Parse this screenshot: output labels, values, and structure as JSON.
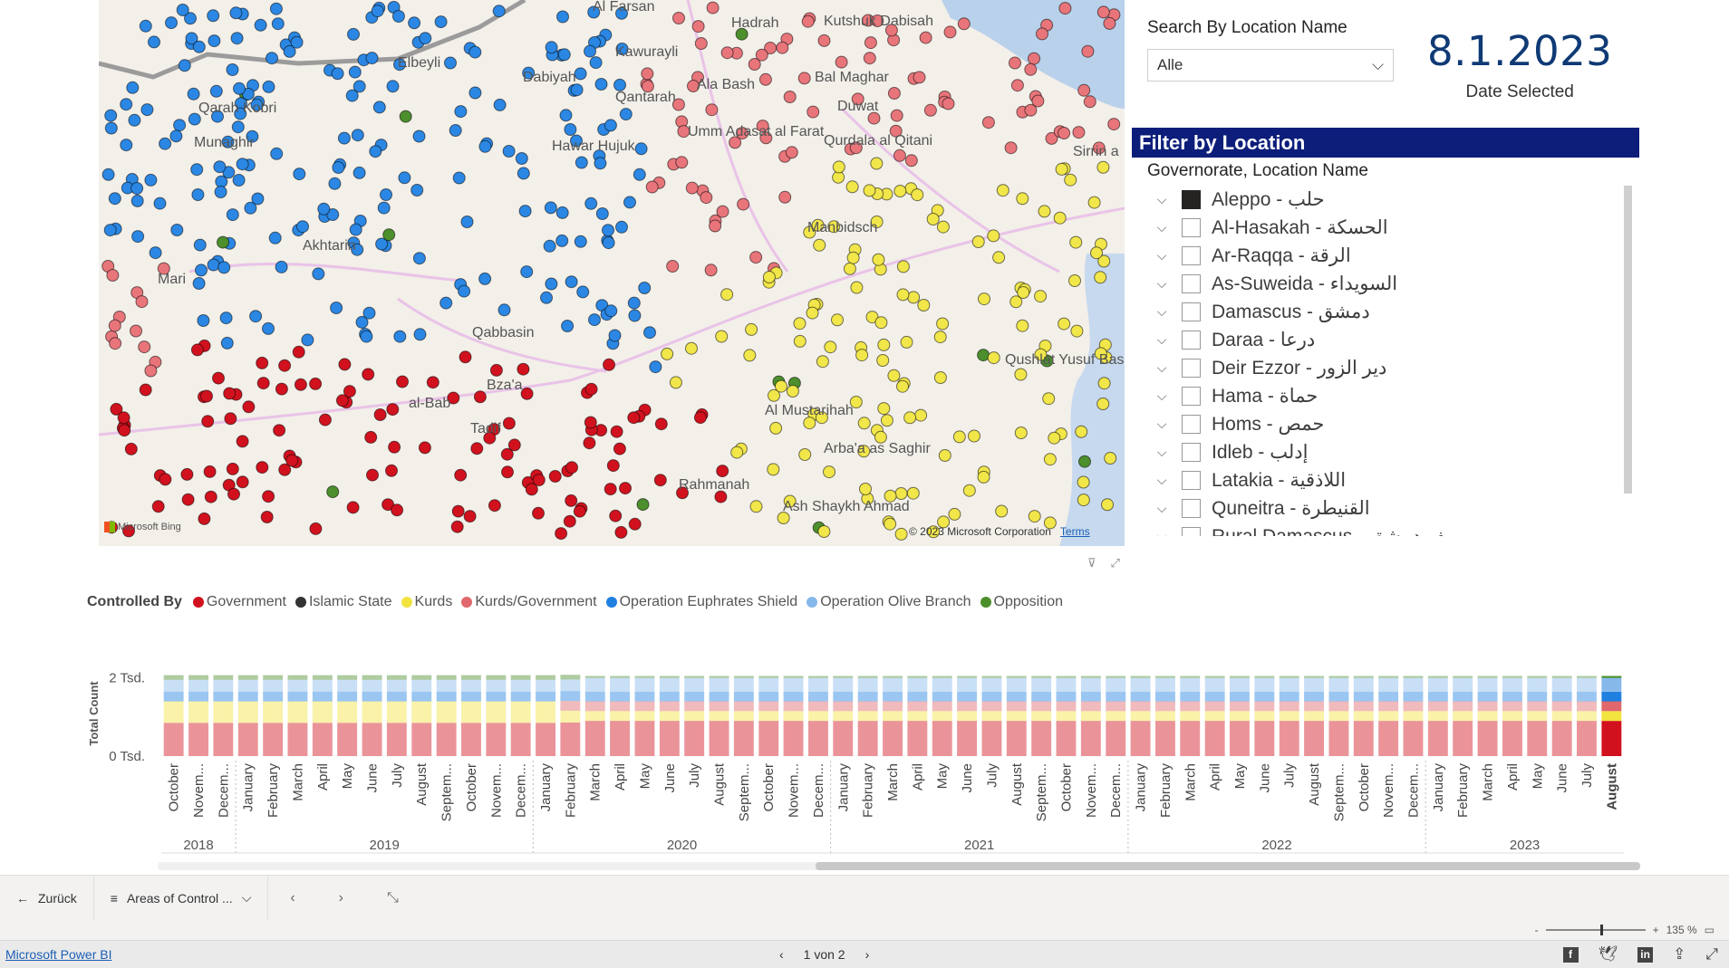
{
  "map": {
    "place_labels": [
      "Al Farsan",
      "Hadrah",
      "Kutshuk Dabisah",
      "Elbeyli",
      "Kawurayli",
      "Dabiyah",
      "Ala Bash",
      "Bal Maghar",
      "Qarah Kobri",
      "Qantarah",
      "Duwat",
      "Munaghir",
      "Hawar Hujuk",
      "Umm Adasat al Farat",
      "Qurdala al Qitani",
      "Sirrin a",
      "Manbidsch",
      "Akhtarin",
      "Mari",
      "Qabbasin",
      "Qushlat Yusuf Basha",
      "Bza'a",
      "al-Bab",
      "Tadif",
      "Al Mustarihah",
      "Arba'a as Saghir",
      "Rahmanah",
      "Ash Shaykh Ahmad"
    ],
    "copyright": "© 2023 Microsoft Corporation",
    "terms": "Terms",
    "logo": "Microsoft Bing"
  },
  "search": {
    "title": "Search By Location Name",
    "value": "Alle"
  },
  "date_card": {
    "value": "8.1.2023",
    "label": "Date Selected"
  },
  "filter": {
    "title": "Filter by Location",
    "subtitle": "Governorate, Location Name",
    "items": [
      {
        "label": "Aleppo - حلب",
        "checked": true
      },
      {
        "label": "Al-Hasakah - الحسكة",
        "checked": false
      },
      {
        "label": "Ar-Raqqa - الرقة",
        "checked": false
      },
      {
        "label": "As-Suweida - السويداء",
        "checked": false
      },
      {
        "label": "Damascus - دمشق",
        "checked": false
      },
      {
        "label": "Daraa - درعا",
        "checked": false
      },
      {
        "label": "Deir Ezzor - دير الزور",
        "checked": false
      },
      {
        "label": "Hama - حماة",
        "checked": false
      },
      {
        "label": "Homs - حمص",
        "checked": false
      },
      {
        "label": "Idleb - إدلب",
        "checked": false
      },
      {
        "label": "Latakia - اللاذقية",
        "checked": false
      },
      {
        "label": "Quneitra - القنيطرة",
        "checked": false
      },
      {
        "label": "Rural Damascus - ريف دمشق",
        "checked": false
      }
    ]
  },
  "legend": {
    "title": "Controlled By",
    "items": [
      {
        "name": "Government",
        "color": "#d1121e"
      },
      {
        "name": "Islamic State",
        "color": "#333333"
      },
      {
        "name": "Kurds",
        "color": "#f2e33f"
      },
      {
        "name": "Kurds/Government",
        "color": "#e0676b"
      },
      {
        "name": "Operation Euphrates Shield",
        "color": "#1f80e0"
      },
      {
        "name": "Operation Olive Branch",
        "color": "#86b8ea"
      },
      {
        "name": "Opposition",
        "color": "#4c8f2c"
      }
    ]
  },
  "chart_data": {
    "type": "bar",
    "stacked": true,
    "ylabel": "Total Count",
    "yticks": [
      "0 Tsd.",
      "2 Tsd."
    ],
    "ylim": [
      0,
      2200
    ],
    "categories": [
      "October",
      "Novem...",
      "Decem...",
      "January",
      "February",
      "March",
      "April",
      "May",
      "June",
      "July",
      "August",
      "Septem...",
      "October",
      "Novem...",
      "Decem...",
      "January",
      "February",
      "March",
      "April",
      "May",
      "June",
      "July",
      "August",
      "Septem...",
      "October",
      "Novem...",
      "Decem...",
      "January",
      "February",
      "March",
      "April",
      "May",
      "June",
      "July",
      "August",
      "Septem...",
      "October",
      "Novem...",
      "Decem...",
      "January",
      "February",
      "March",
      "April",
      "May",
      "June",
      "July",
      "August",
      "Septem...",
      "October",
      "Novem...",
      "Decem...",
      "January",
      "February",
      "March",
      "April",
      "May",
      "June",
      "July",
      "August"
    ],
    "years": [
      {
        "label": "2018",
        "count": 3
      },
      {
        "label": "2019",
        "count": 12
      },
      {
        "label": "2020",
        "count": 12
      },
      {
        "label": "2021",
        "count": 12
      },
      {
        "label": "2022",
        "count": 12
      },
      {
        "label": "2023",
        "count": 8
      }
    ],
    "highlight_index": 58,
    "series_colors": [
      "#d1121e",
      "#f2e33f",
      "#e0676b",
      "#1f80e0",
      "#86b8ea",
      "#4c8f2c"
    ],
    "series": [
      {
        "name": "Government",
        "values": [
          850,
          850,
          850,
          850,
          850,
          850,
          850,
          850,
          850,
          850,
          850,
          850,
          850,
          850,
          850,
          850,
          860,
          900,
          900,
          900,
          900,
          900,
          900,
          900,
          900,
          900,
          900,
          900,
          900,
          900,
          900,
          900,
          900,
          900,
          900,
          900,
          900,
          900,
          900,
          900,
          900,
          900,
          900,
          900,
          900,
          900,
          900,
          900,
          900,
          900,
          900,
          900,
          900,
          900,
          900,
          900,
          900,
          900,
          900
        ]
      },
      {
        "name": "Kurds",
        "values": [
          550,
          550,
          550,
          550,
          550,
          550,
          550,
          550,
          550,
          550,
          550,
          550,
          550,
          550,
          550,
          550,
          300,
          250,
          250,
          250,
          250,
          250,
          250,
          250,
          250,
          250,
          250,
          250,
          250,
          250,
          250,
          250,
          250,
          250,
          250,
          250,
          250,
          250,
          250,
          250,
          250,
          250,
          250,
          250,
          250,
          250,
          250,
          250,
          250,
          250,
          250,
          250,
          250,
          250,
          250,
          250,
          250,
          250,
          250
        ]
      },
      {
        "name": "Kurds/Government",
        "values": [
          0,
          0,
          0,
          0,
          0,
          0,
          0,
          0,
          0,
          0,
          0,
          0,
          0,
          0,
          0,
          0,
          250,
          250,
          250,
          250,
          250,
          250,
          250,
          250,
          250,
          250,
          250,
          250,
          250,
          250,
          250,
          250,
          250,
          250,
          250,
          250,
          250,
          250,
          250,
          250,
          250,
          250,
          250,
          250,
          250,
          250,
          250,
          250,
          250,
          250,
          250,
          250,
          250,
          250,
          250,
          250,
          250,
          250,
          250
        ]
      },
      {
        "name": "Operation Euphrates Shield",
        "values": [
          250,
          250,
          250,
          250,
          250,
          250,
          250,
          250,
          250,
          250,
          250,
          250,
          250,
          250,
          250,
          250,
          250,
          250,
          250,
          250,
          250,
          250,
          250,
          250,
          250,
          250,
          250,
          250,
          250,
          250,
          250,
          250,
          250,
          250,
          250,
          250,
          250,
          250,
          250,
          250,
          250,
          250,
          250,
          250,
          250,
          250,
          250,
          250,
          250,
          250,
          250,
          250,
          250,
          250,
          250,
          250,
          250,
          250,
          250
        ]
      },
      {
        "name": "Operation Olive Branch",
        "values": [
          300,
          300,
          300,
          300,
          300,
          300,
          300,
          300,
          300,
          300,
          300,
          300,
          300,
          300,
          300,
          300,
          300,
          350,
          350,
          350,
          350,
          350,
          350,
          350,
          350,
          350,
          350,
          350,
          350,
          350,
          350,
          350,
          350,
          350,
          350,
          350,
          350,
          350,
          350,
          350,
          350,
          350,
          350,
          350,
          350,
          350,
          350,
          350,
          350,
          350,
          350,
          350,
          350,
          350,
          350,
          350,
          350,
          350,
          350
        ]
      },
      {
        "name": "Opposition",
        "values": [
          120,
          120,
          120,
          120,
          120,
          120,
          120,
          120,
          120,
          120,
          120,
          120,
          120,
          120,
          120,
          120,
          120,
          50,
          50,
          50,
          50,
          50,
          50,
          50,
          50,
          50,
          50,
          50,
          50,
          50,
          50,
          50,
          50,
          50,
          50,
          50,
          50,
          50,
          50,
          50,
          50,
          50,
          50,
          50,
          50,
          50,
          50,
          50,
          50,
          50,
          50,
          50,
          50,
          50,
          50,
          50,
          50,
          50,
          50
        ]
      }
    ]
  },
  "nav": {
    "back": "Zurück",
    "page_menu": "Areas of Control ...",
    "zoom": "135 %",
    "pager": "1 von 2",
    "powerbi": "Microsoft Power BI"
  }
}
